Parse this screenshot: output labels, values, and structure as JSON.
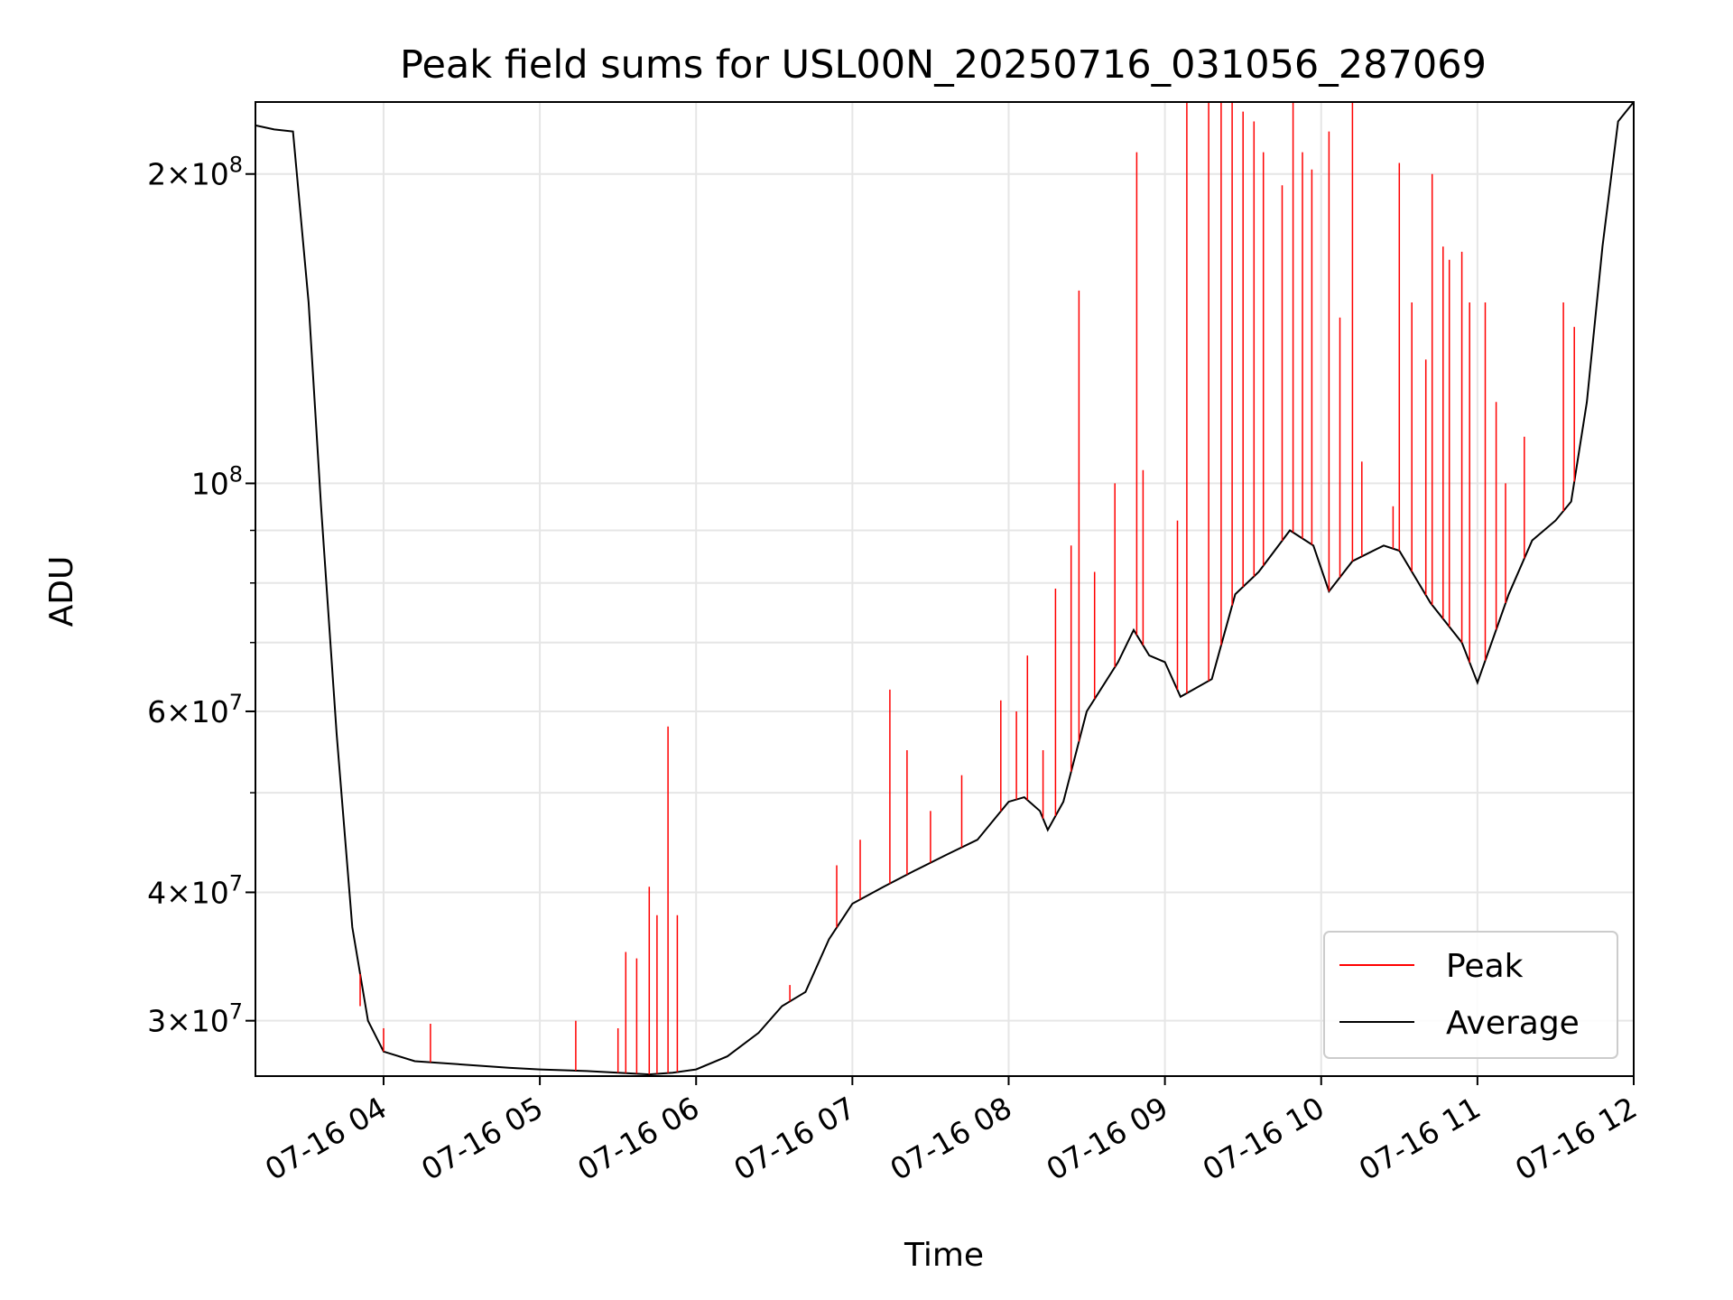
{
  "chart_data": {
    "type": "line",
    "title": "Peak field sums for USL00N_20250716_031056_287069",
    "xlabel": "Time",
    "ylabel": "ADU",
    "x_ticks": [
      "07-16 04",
      "07-16 05",
      "07-16 06",
      "07-16 07",
      "07-16 08",
      "07-16 09",
      "07-16 10",
      "07-16 11",
      "07-16 12"
    ],
    "y_scale": "log",
    "y_ticks": [
      {
        "value": 30000000,
        "mant": "3",
        "exp": "7"
      },
      {
        "value": 40000000,
        "mant": "4",
        "exp": "7"
      },
      {
        "value": 60000000,
        "mant": "6",
        "exp": "7"
      },
      {
        "value": 100000000,
        "mant": "",
        "exp": "8"
      },
      {
        "value": 200000000,
        "mant": "2",
        "exp": "8"
      }
    ],
    "x_range_hours": [
      3.18,
      12.0
    ],
    "ylim": [
      26500000,
      235000000
    ],
    "grid": true,
    "legend_position": "lower right",
    "legend": [
      "Peak",
      "Average"
    ],
    "colors": {
      "Peak": "#ff0000",
      "Average": "#000000"
    },
    "series": [
      {
        "name": "Average",
        "x": [
          3.18,
          3.3,
          3.42,
          3.52,
          3.6,
          3.7,
          3.8,
          3.9,
          4.0,
          4.2,
          4.5,
          4.8,
          5.0,
          5.3,
          5.5,
          5.7,
          5.85,
          6.0,
          6.2,
          6.4,
          6.55,
          6.7,
          6.85,
          7.0,
          7.2,
          7.4,
          7.6,
          7.8,
          8.0,
          8.1,
          8.2,
          8.25,
          8.35,
          8.5,
          8.7,
          8.8,
          8.9,
          9.0,
          9.1,
          9.3,
          9.45,
          9.6,
          9.8,
          9.95,
          10.05,
          10.2,
          10.4,
          10.5,
          10.7,
          10.9,
          11.0,
          11.2,
          11.35,
          11.5,
          11.6,
          11.7,
          11.8,
          11.9,
          12.0
        ],
        "y": [
          223000000,
          221000000,
          220000000,
          150000000,
          95000000,
          57000000,
          37000000,
          30000000,
          28000000,
          27400000,
          27200000,
          27000000,
          26900000,
          26800000,
          26700000,
          26600000,
          26700000,
          26900000,
          27700000,
          29200000,
          31000000,
          32000000,
          36000000,
          39000000,
          40500000,
          42000000,
          43500000,
          45000000,
          49000000,
          49500000,
          48000000,
          46000000,
          49000000,
          60000000,
          67000000,
          72000000,
          68000000,
          67000000,
          62000000,
          64500000,
          78000000,
          82000000,
          90000000,
          87000000,
          78500000,
          84000000,
          87000000,
          86000000,
          76500000,
          70000000,
          64000000,
          78000000,
          88000000,
          92000000,
          96000000,
          120000000,
          170000000,
          225000000,
          235000000
        ]
      },
      {
        "name": "Peak",
        "spikes": [
          {
            "x": 3.85,
            "y": 31000000
          },
          {
            "x": 4.0,
            "y": 29500000
          },
          {
            "x": 4.3,
            "y": 29800000
          },
          {
            "x": 5.23,
            "y": 30000000
          },
          {
            "x": 5.5,
            "y": 29500000
          },
          {
            "x": 5.55,
            "y": 35000000
          },
          {
            "x": 5.62,
            "y": 34500000
          },
          {
            "x": 5.7,
            "y": 40500000
          },
          {
            "x": 5.75,
            "y": 38000000
          },
          {
            "x": 5.82,
            "y": 58000000
          },
          {
            "x": 5.88,
            "y": 38000000
          },
          {
            "x": 6.6,
            "y": 32500000
          },
          {
            "x": 6.9,
            "y": 42500000
          },
          {
            "x": 7.05,
            "y": 45000000
          },
          {
            "x": 7.24,
            "y": 63000000
          },
          {
            "x": 7.35,
            "y": 55000000
          },
          {
            "x": 7.5,
            "y": 48000000
          },
          {
            "x": 7.7,
            "y": 52000000
          },
          {
            "x": 7.95,
            "y": 61500000
          },
          {
            "x": 8.05,
            "y": 60000000
          },
          {
            "x": 8.12,
            "y": 68000000
          },
          {
            "x": 8.22,
            "y": 55000000
          },
          {
            "x": 8.3,
            "y": 79000000
          },
          {
            "x": 8.4,
            "y": 87000000
          },
          {
            "x": 8.45,
            "y": 154000000
          },
          {
            "x": 8.55,
            "y": 82000000
          },
          {
            "x": 8.68,
            "y": 100000000
          },
          {
            "x": 8.82,
            "y": 210000000
          },
          {
            "x": 8.86,
            "y": 103000000
          },
          {
            "x": 9.08,
            "y": 92000000
          },
          {
            "x": 9.14,
            "y": 235000000
          },
          {
            "x": 9.28,
            "y": 235000000
          },
          {
            "x": 9.36,
            "y": 235000000
          },
          {
            "x": 9.43,
            "y": 235000000
          },
          {
            "x": 9.5,
            "y": 230000000
          },
          {
            "x": 9.57,
            "y": 225000000
          },
          {
            "x": 9.63,
            "y": 210000000
          },
          {
            "x": 9.75,
            "y": 195000000
          },
          {
            "x": 9.82,
            "y": 235000000
          },
          {
            "x": 9.88,
            "y": 210000000
          },
          {
            "x": 9.94,
            "y": 202000000
          },
          {
            "x": 10.05,
            "y": 220000000
          },
          {
            "x": 10.12,
            "y": 145000000
          },
          {
            "x": 10.2,
            "y": 235000000
          },
          {
            "x": 10.26,
            "y": 105000000
          },
          {
            "x": 10.46,
            "y": 95000000
          },
          {
            "x": 10.5,
            "y": 205000000
          },
          {
            "x": 10.58,
            "y": 150000000
          },
          {
            "x": 10.67,
            "y": 132000000
          },
          {
            "x": 10.71,
            "y": 200000000
          },
          {
            "x": 10.78,
            "y": 170000000
          },
          {
            "x": 10.82,
            "y": 165000000
          },
          {
            "x": 10.9,
            "y": 168000000
          },
          {
            "x": 10.95,
            "y": 150000000
          },
          {
            "x": 11.05,
            "y": 150000000
          },
          {
            "x": 11.12,
            "y": 120000000
          },
          {
            "x": 11.18,
            "y": 100000000
          },
          {
            "x": 11.3,
            "y": 111000000
          },
          {
            "x": 11.55,
            "y": 150000000
          },
          {
            "x": 11.62,
            "y": 142000000
          }
        ]
      }
    ]
  }
}
